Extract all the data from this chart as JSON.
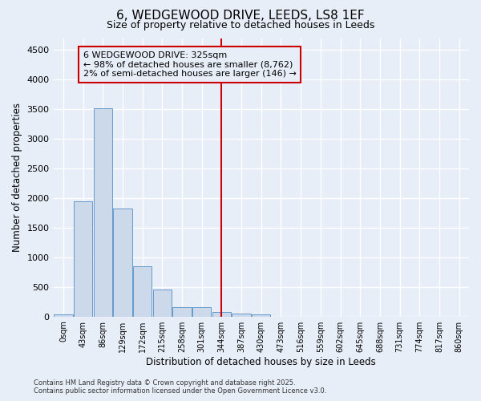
{
  "title_line1": "6, WEDGEWOOD DRIVE, LEEDS, LS8 1EF",
  "title_line2": "Size of property relative to detached houses in Leeds",
  "xlabel": "Distribution of detached houses by size in Leeds",
  "ylabel": "Number of detached properties",
  "bar_labels": [
    "0sqm",
    "43sqm",
    "86sqm",
    "129sqm",
    "172sqm",
    "215sqm",
    "258sqm",
    "301sqm",
    "344sqm",
    "387sqm",
    "430sqm",
    "473sqm",
    "516sqm",
    "559sqm",
    "602sqm",
    "645sqm",
    "688sqm",
    "731sqm",
    "774sqm",
    "817sqm",
    "860sqm"
  ],
  "bar_values": [
    30,
    1950,
    3510,
    1820,
    850,
    450,
    160,
    155,
    80,
    50,
    35,
    0,
    0,
    0,
    0,
    0,
    0,
    0,
    0,
    0,
    0
  ],
  "bar_color": "#ccd9ea",
  "bar_edge_color": "#6699cc",
  "vline_x": 8,
  "vline_color": "#cc0000",
  "annotation_line1": "6 WEDGEWOOD DRIVE: 325sqm",
  "annotation_line2": "← 98% of detached houses are smaller (8,762)",
  "annotation_line3": "2% of semi-detached houses are larger (146) →",
  "annotation_box_color": "#cc0000",
  "ylim": [
    0,
    4700
  ],
  "yticks": [
    0,
    500,
    1000,
    1500,
    2000,
    2500,
    3000,
    3500,
    4000,
    4500
  ],
  "bg_color": "#e8eef8",
  "grid_color": "#ffffff",
  "title_fontsize": 11,
  "subtitle_fontsize": 9,
  "footer_text": "Contains HM Land Registry data © Crown copyright and database right 2025.\nContains public sector information licensed under the Open Government Licence v3.0."
}
